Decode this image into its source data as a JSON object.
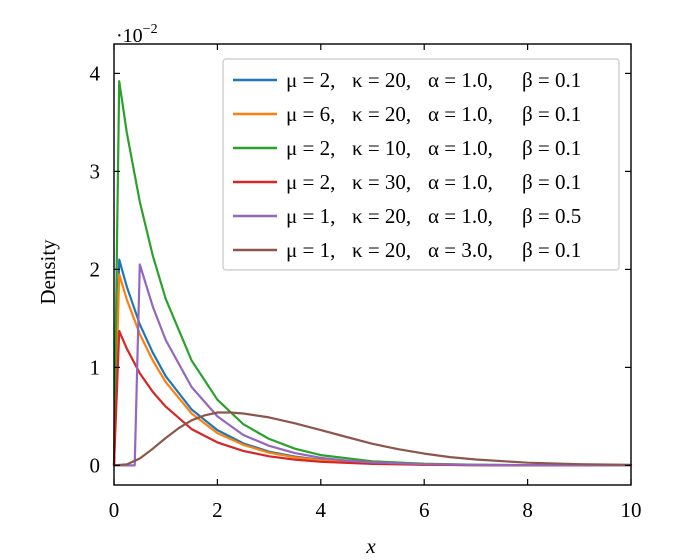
{
  "chart_data": {
    "type": "line",
    "xlabel": "x",
    "ylabel": "Density",
    "y_multiplier_label": "·10",
    "y_multiplier_exponent": "−2",
    "xlim": [
      0,
      10
    ],
    "ylim": [
      -0.2,
      4.3
    ],
    "x_ticks": [
      0,
      2,
      4,
      6,
      8,
      10
    ],
    "x_tick_labels": [
      "0",
      "2",
      "4",
      "6",
      "8",
      "10"
    ],
    "y_ticks": [
      0,
      1,
      2,
      3,
      4
    ],
    "y_tick_labels": [
      "0",
      "1",
      "2",
      "3",
      "4"
    ],
    "grid": false,
    "legend_position": "top-right",
    "series": [
      {
        "name": "μ = 2, κ = 20, α = 1.0, β = 0.1",
        "legend": {
          "mu": "μ = 2,",
          "kappa": "κ = 20,",
          "alpha": "α = 1.0,",
          "beta": "β = 0.1"
        },
        "color": "#1f77b4",
        "x": [
          0,
          0.1,
          0.25,
          0.5,
          0.75,
          1.0,
          1.5,
          2.0,
          2.5,
          3.0,
          3.5,
          4.0,
          5.0,
          6.0,
          7.0,
          8.0,
          10.0
        ],
        "y": [
          0,
          2.1,
          1.82,
          1.44,
          1.15,
          0.91,
          0.57,
          0.36,
          0.225,
          0.14,
          0.09,
          0.056,
          0.022,
          0.009,
          0.003,
          0.001,
          0.0
        ]
      },
      {
        "name": "μ = 6, κ = 20, α = 1.0, β = 0.1",
        "legend": {
          "mu": "μ = 6,",
          "kappa": "κ = 20,",
          "alpha": "α = 1.0,",
          "beta": "β = 0.1"
        },
        "color": "#ff7f0e",
        "x": [
          0,
          0.1,
          0.25,
          0.5,
          0.75,
          1.0,
          1.5,
          2.0,
          2.5,
          3.0,
          3.5,
          4.0,
          5.0,
          6.0,
          7.0,
          8.0,
          10.0
        ],
        "y": [
          0,
          1.95,
          1.69,
          1.34,
          1.07,
          0.85,
          0.53,
          0.33,
          0.21,
          0.13,
          0.083,
          0.052,
          0.02,
          0.008,
          0.003,
          0.001,
          0.0
        ]
      },
      {
        "name": "μ = 2, κ = 10, α = 1.0, β = 0.1",
        "legend": {
          "mu": "μ = 2,",
          "kappa": "κ = 10,",
          "alpha": "α = 1.0,",
          "beta": "β = 0.1"
        },
        "color": "#2ca02c",
        "x": [
          0,
          0.1,
          0.25,
          0.5,
          0.75,
          1.0,
          1.5,
          2.0,
          2.5,
          3.0,
          3.5,
          4.0,
          5.0,
          6.0,
          7.0,
          8.0,
          10.0
        ],
        "y": [
          0,
          3.92,
          3.39,
          2.69,
          2.14,
          1.7,
          1.07,
          0.67,
          0.42,
          0.27,
          0.17,
          0.105,
          0.042,
          0.017,
          0.007,
          0.003,
          0.0
        ]
      },
      {
        "name": "μ = 2, κ = 30, α = 1.0, β = 0.1",
        "legend": {
          "mu": "μ = 2,",
          "kappa": "κ = 30,",
          "alpha": "α = 1.0,",
          "beta": "β = 0.1"
        },
        "color": "#d62728",
        "x": [
          0,
          0.1,
          0.25,
          0.5,
          0.75,
          1.0,
          1.5,
          2.0,
          2.5,
          3.0,
          3.5,
          4.0,
          5.0,
          6.0,
          7.0,
          8.0,
          10.0
        ],
        "y": [
          0,
          1.37,
          1.19,
          0.94,
          0.75,
          0.6,
          0.37,
          0.235,
          0.148,
          0.093,
          0.059,
          0.037,
          0.015,
          0.006,
          0.002,
          0.001,
          0.0
        ]
      },
      {
        "name": "μ = 1, κ = 20, α = 1.0, β = 0.5",
        "legend": {
          "mu": "μ = 1,",
          "kappa": "κ = 20,",
          "alpha": "α = 1.0,",
          "beta": "β = 0.5"
        },
        "color": "#9467bd",
        "x": [
          0,
          0.4,
          0.5,
          0.75,
          1.0,
          1.5,
          2.0,
          2.5,
          3.0,
          3.5,
          4.0,
          4.5,
          5.0,
          6.0,
          7.0,
          8.0,
          10.0
        ],
        "y": [
          0,
          0.0,
          2.05,
          1.62,
          1.28,
          0.8,
          0.5,
          0.31,
          0.2,
          0.125,
          0.078,
          0.049,
          0.031,
          0.012,
          0.005,
          0.002,
          0.0
        ]
      },
      {
        "name": "μ = 1, κ = 20, α = 3.0, β = 0.1",
        "legend": {
          "mu": "μ = 1,",
          "kappa": "κ = 20,",
          "alpha": "α = 3.0,",
          "beta": "β = 0.1"
        },
        "color": "#8c564b",
        "x": [
          0,
          0.25,
          0.5,
          0.75,
          1.0,
          1.25,
          1.5,
          1.75,
          2.0,
          2.25,
          2.5,
          3.0,
          3.5,
          4.0,
          4.5,
          5.0,
          5.5,
          6.0,
          6.5,
          7.0,
          8.0,
          9.0,
          10.0
        ],
        "y": [
          0,
          0.01,
          0.07,
          0.17,
          0.28,
          0.38,
          0.46,
          0.51,
          0.54,
          0.54,
          0.53,
          0.49,
          0.43,
          0.36,
          0.29,
          0.22,
          0.165,
          0.12,
          0.085,
          0.06,
          0.028,
          0.012,
          0.005
        ]
      }
    ]
  }
}
